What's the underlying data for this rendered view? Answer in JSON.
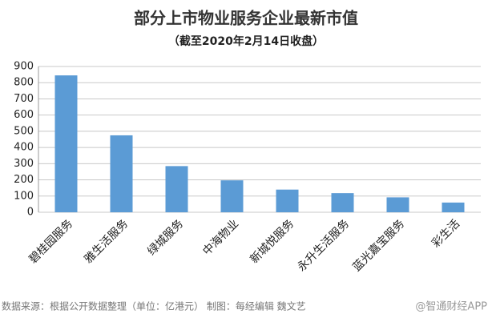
{
  "chart_data": {
    "type": "bar",
    "title": "部分上市物业服务企业最新市值",
    "subtitle": "（截至2020年2月14日收盘）",
    "categories": [
      "碧桂园服务",
      "雅生活服务",
      "绿城服务",
      "中海物业",
      "新城悦服务",
      "永升生活服务",
      "蓝光嘉宝服务",
      "彩生活"
    ],
    "values": [
      845,
      475,
      285,
      197,
      140,
      118,
      92,
      60
    ],
    "color": "#5b9bd5",
    "ylim": [
      0,
      900
    ],
    "yticks": [
      0,
      100,
      200,
      300,
      400,
      500,
      600,
      700,
      800,
      900
    ],
    "grid": true,
    "source": "数据来源：根据公开数据整理（单位：亿港元）  制图：每经编辑 魏文艺",
    "watermark": "@智通财经APP"
  }
}
